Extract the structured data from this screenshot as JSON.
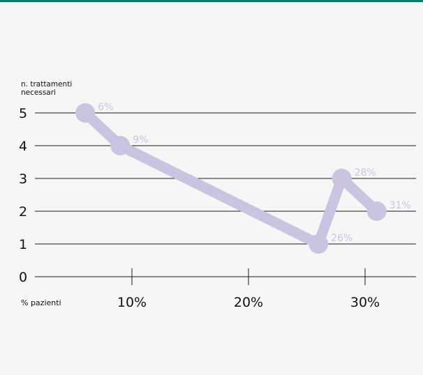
{
  "accent_color": "#0f7a68",
  "series_color": "#cbc4e0",
  "chart_data": {
    "type": "line",
    "ylabel": "n. trattamenti necessari",
    "ylabel_lines": [
      "n. trattamenti",
      "necessari"
    ],
    "xlabel": "% pazienti",
    "ylim": [
      0,
      5
    ],
    "yticks": [
      "0",
      "1",
      "2",
      "3",
      "4",
      "5"
    ],
    "xlim": [
      0,
      35
    ],
    "xticks": [
      {
        "value": 10,
        "label": "10%"
      },
      {
        "value": 20,
        "label": "20%"
      },
      {
        "value": 30,
        "label": "30%"
      }
    ],
    "grid": true,
    "series": [
      {
        "points": [
          {
            "x": 6,
            "y": 5,
            "label": "6%"
          },
          {
            "x": 9,
            "y": 4,
            "label": "9%"
          },
          {
            "x": 26,
            "y": 1,
            "label": "26%"
          },
          {
            "x": 28,
            "y": 3,
            "label": "28%"
          },
          {
            "x": 31,
            "y": 2,
            "label": "31%"
          }
        ]
      }
    ]
  }
}
